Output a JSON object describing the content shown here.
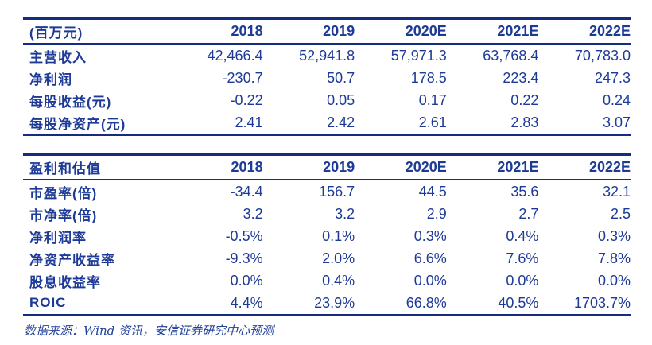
{
  "colors": {
    "navy_text": "#1d3a97",
    "navy_rule": "#142c82",
    "background": "#ffffff"
  },
  "income_table": {
    "unit_label": "(百万元)",
    "columns": [
      "2018",
      "2019",
      "2020E",
      "2021E",
      "2022E"
    ],
    "rows": [
      {
        "label": "主营收入",
        "values": [
          "42,466.4",
          "52,941.8",
          "57,971.3",
          "63,768.4",
          "70,783.0"
        ]
      },
      {
        "label": "净利润",
        "values": [
          "-230.7",
          "50.7",
          "178.5",
          "223.4",
          "247.3"
        ]
      },
      {
        "label": "每股收益(元)",
        "values": [
          "-0.22",
          "0.05",
          "0.17",
          "0.22",
          "0.24"
        ]
      },
      {
        "label": "每股净资产(元)",
        "values": [
          "2.41",
          "2.42",
          "2.61",
          "2.83",
          "3.07"
        ]
      }
    ]
  },
  "valuation_table": {
    "title": "盈利和估值",
    "columns": [
      "2018",
      "2019",
      "2020E",
      "2021E",
      "2022E"
    ],
    "rows": [
      {
        "label": "市盈率(倍)",
        "values": [
          "-34.4",
          "156.7",
          "44.5",
          "35.6",
          "32.1"
        ]
      },
      {
        "label": "市净率(倍)",
        "values": [
          "3.2",
          "3.2",
          "2.9",
          "2.7",
          "2.5"
        ]
      },
      {
        "label": "净利润率",
        "values": [
          "-0.5%",
          "0.1%",
          "0.3%",
          "0.4%",
          "0.3%"
        ]
      },
      {
        "label": "净资产收益率",
        "values": [
          "-9.3%",
          "2.0%",
          "6.6%",
          "7.6%",
          "7.8%"
        ]
      },
      {
        "label": "股息收益率",
        "values": [
          "0.0%",
          "0.4%",
          "0.0%",
          "0.0%",
          "0.0%"
        ]
      },
      {
        "label": "ROIC",
        "values": [
          "4.4%",
          "23.9%",
          "66.8%",
          "40.5%",
          "1703.7%"
        ]
      }
    ]
  },
  "footer": {
    "source_text": "数据来源：Wind 资讯，安信证券研究中心预测"
  }
}
